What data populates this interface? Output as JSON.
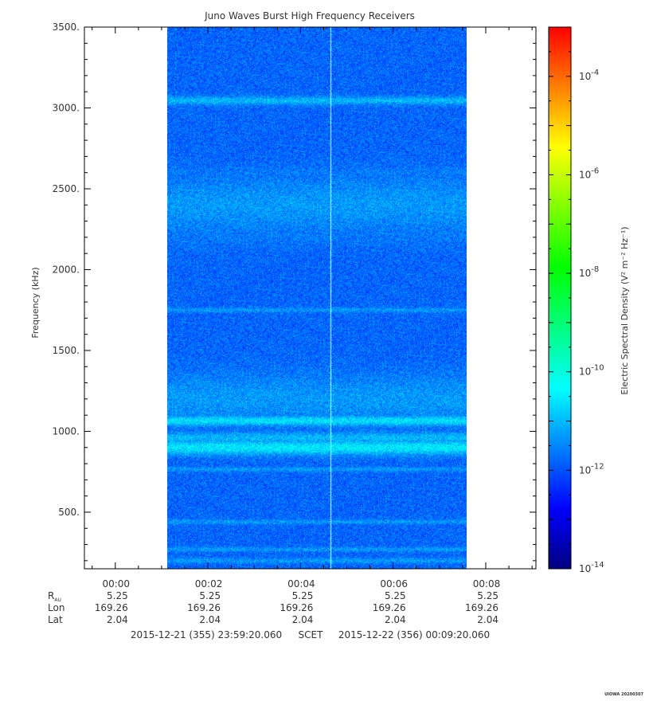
{
  "chart_data": {
    "type": "heatmap",
    "title": "Juno Waves Burst High Frequency Receivers",
    "ylabel": "Frequency (kHz)",
    "ylim": [
      150,
      3500
    ],
    "yticks": [
      500,
      1000,
      1500,
      2000,
      2500,
      3000,
      3500
    ],
    "ytick_labels": [
      "500.",
      "1000.",
      "1500.",
      "2000.",
      "2500.",
      "3000.",
      "3500."
    ],
    "x_range_minutes": [
      -0.6667,
      9.0833
    ],
    "xticks_minutes": [
      0,
      2,
      4,
      6,
      8
    ],
    "xtick_labels": [
      "00:00",
      "00:02",
      "00:04",
      "00:06",
      "00:08"
    ],
    "data_extent_minutes": [
      1.1167,
      7.5833
    ],
    "white_gap_minute": 4.65,
    "colorbar": {
      "label": "Electric Spectral Density (V² m⁻² Hz⁻¹)",
      "log_scale": true,
      "range_log10": [
        -14,
        -3
      ],
      "tick_exponents": [
        -4,
        -6,
        -8,
        -10,
        -12,
        -14
      ],
      "tick_base": "10",
      "colormap": [
        "#000080",
        "#0000ff",
        "#0080ff",
        "#00ffff",
        "#00ff80",
        "#00ff00",
        "#80ff00",
        "#ffff00",
        "#ff8000",
        "#ff0000"
      ]
    },
    "background_level_log10": -11.8,
    "intensity_bands": [
      {
        "freq_khz": 3045,
        "width_khz": 18,
        "level_log10": -11.0
      },
      {
        "freq_khz": 2600,
        "width_khz": 30,
        "level_log10": -11.6
      },
      {
        "freq_khz": 2400,
        "width_khz": 120,
        "level_log10": -11.3
      },
      {
        "freq_khz": 2220,
        "width_khz": 60,
        "level_log10": -11.6
      },
      {
        "freq_khz": 1750,
        "width_khz": 10,
        "level_log10": -11.3
      },
      {
        "freq_khz": 1200,
        "width_khz": 110,
        "level_log10": -11.3
      },
      {
        "freq_khz": 1065,
        "width_khz": 22,
        "level_log10": -10.6
      },
      {
        "freq_khz": 900,
        "width_khz": 32,
        "level_log10": -10.5
      },
      {
        "freq_khz": 960,
        "width_khz": 25,
        "level_log10": -11.0
      },
      {
        "freq_khz": 765,
        "width_khz": 10,
        "level_log10": -11.3
      },
      {
        "freq_khz": 440,
        "width_khz": 10,
        "level_log10": -11.3
      },
      {
        "freq_khz": 270,
        "width_khz": 10,
        "level_log10": -11.3
      },
      {
        "freq_khz": 200,
        "width_khz": 12,
        "level_log10": -11.3
      }
    ],
    "ephemeris": {
      "rows": [
        {
          "label": "R",
          "sub": "AU",
          "values": [
            "5.25",
            "5.25",
            "5.25",
            "5.25",
            "5.25"
          ]
        },
        {
          "label": "Lon",
          "sub": "",
          "values": [
            "169.26",
            "169.26",
            "169.26",
            "169.26",
            "169.26"
          ]
        },
        {
          "label": "Lat",
          "sub": "",
          "values": [
            "2.04",
            "2.04",
            "2.04",
            "2.04",
            "2.04"
          ]
        }
      ]
    },
    "time_range": {
      "start": "2015-12-21 (355) 23:59:20.060",
      "frame": "SCET",
      "end": "2015-12-22 (356) 00:09:20.060"
    },
    "footer_tag": "UIOWA 20200307"
  }
}
